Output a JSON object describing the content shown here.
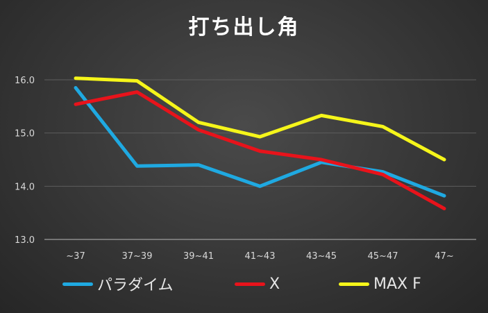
{
  "chart_data": {
    "type": "line",
    "title": "打ち出し角",
    "categories": [
      "~37",
      "37~39",
      "39~41",
      "41~43",
      "43~45",
      "45~47",
      "47~"
    ],
    "ylim": [
      13.0,
      16.0
    ],
    "yticks": [
      "13.0",
      "14.0",
      "15.0",
      "16.0"
    ],
    "grid": true,
    "legend_position": "bottom",
    "series": [
      {
        "name": "パラダイム",
        "color": "#1fa9e1",
        "values": [
          15.85,
          14.38,
          14.4,
          14.0,
          14.45,
          14.27,
          13.82
        ]
      },
      {
        "name": "X",
        "color": "#e8131b",
        "values": [
          15.54,
          15.77,
          15.06,
          14.66,
          14.5,
          14.22,
          13.58
        ]
      },
      {
        "name": "MAX F",
        "color": "#f5f51a",
        "values": [
          16.03,
          15.98,
          15.2,
          14.93,
          15.33,
          15.12,
          14.5
        ]
      }
    ]
  }
}
